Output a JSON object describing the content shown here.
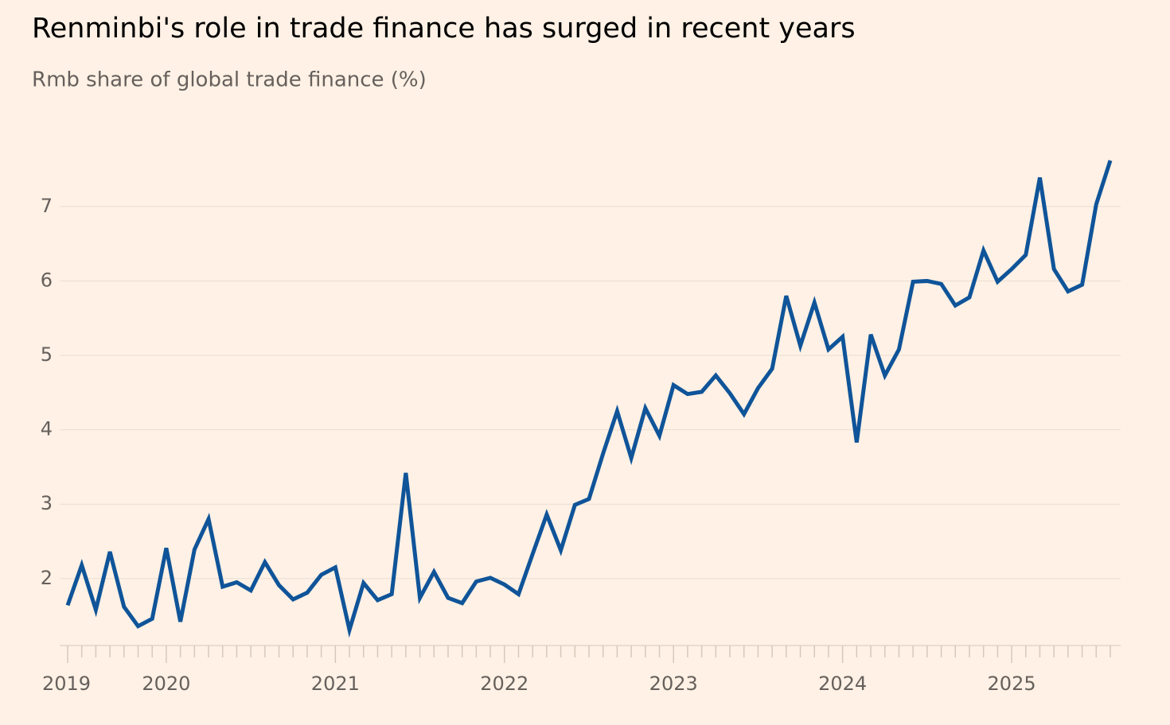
{
  "chart_data": {
    "type": "line",
    "title": "Renminbi's role in trade finance has surged in recent years",
    "subtitle": "Rmb share of global trade finance (%)",
    "categories": [
      "2019",
      null,
      null,
      null,
      null,
      null,
      null,
      "2020",
      null,
      null,
      null,
      null,
      null,
      null,
      null,
      null,
      null,
      null,
      null,
      "2021",
      null,
      null,
      null,
      null,
      null,
      null,
      null,
      null,
      null,
      null,
      null,
      "2022",
      null,
      null,
      null,
      null,
      null,
      null,
      null,
      null,
      null,
      null,
      null,
      "2023",
      null,
      null,
      null,
      null,
      null,
      null,
      null,
      null,
      null,
      null,
      null,
      "2024",
      null,
      null,
      null,
      null,
      null,
      null,
      null,
      null,
      null,
      null,
      null,
      "2025",
      null,
      null,
      null,
      null,
      null,
      null,
      null
    ],
    "series": [
      {
        "name": "Rmb share",
        "color": "#0f5499",
        "values": [
          1.64,
          2.18,
          1.58,
          2.36,
          1.62,
          1.36,
          1.46,
          2.41,
          1.42,
          2.39,
          2.8,
          1.89,
          1.95,
          1.84,
          2.22,
          1.91,
          1.72,
          1.81,
          2.05,
          2.15,
          1.31,
          1.94,
          1.71,
          1.79,
          3.42,
          1.74,
          2.09,
          1.74,
          1.67,
          1.96,
          2.01,
          1.92,
          1.79,
          2.33,
          2.86,
          2.38,
          2.99,
          3.07,
          3.68,
          4.25,
          3.62,
          4.29,
          3.92,
          4.6,
          4.48,
          4.51,
          4.73,
          4.49,
          4.21,
          4.56,
          4.82,
          5.8,
          5.13,
          5.71,
          5.08,
          5.25,
          3.83,
          5.28,
          4.73,
          5.08,
          5.99,
          6.0,
          5.96,
          5.67,
          5.78,
          6.41,
          5.99,
          6.16,
          6.35,
          7.39,
          6.16,
          5.86,
          5.95,
          7.03,
          7.62
        ]
      }
    ],
    "ylim": [
      1.1,
      7.8
    ],
    "yticks": [
      2,
      3,
      4,
      5,
      6,
      7
    ],
    "grid": true
  }
}
